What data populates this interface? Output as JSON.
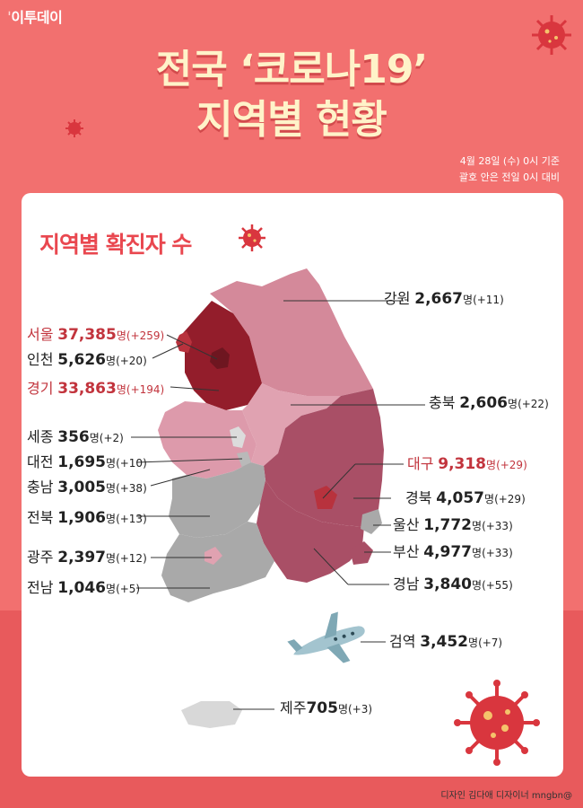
{
  "brand": "이투데이",
  "title": {
    "line1": "전국 ‘코로나19’",
    "line2": "지역별 현황"
  },
  "meta": {
    "date_basis": "4월 28일 (수) 0시 기준",
    "note": "괄호 안은 전일 0시 대비"
  },
  "section_title": "지역별 확진자 수",
  "unit": "명",
  "regions": [
    {
      "name": "강원",
      "count": "2,667",
      "change": "(+11)",
      "highlight": false
    },
    {
      "name": "서울",
      "count": "37,385",
      "change": "(+259)",
      "highlight": true
    },
    {
      "name": "인천",
      "count": "5,626",
      "change": "(+20)",
      "highlight": false
    },
    {
      "name": "경기",
      "count": "33,863",
      "change": "(+194)",
      "highlight": true
    },
    {
      "name": "충북",
      "count": "2,606",
      "change": "(+22)",
      "highlight": false
    },
    {
      "name": "세종",
      "count": "356",
      "change": "(+2)",
      "highlight": false
    },
    {
      "name": "대전",
      "count": "1,695",
      "change": "(+10)",
      "highlight": false
    },
    {
      "name": "대구",
      "count": "9,318",
      "change": "(+29)",
      "highlight": true
    },
    {
      "name": "충남",
      "count": "3,005",
      "change": "(+38)",
      "highlight": false
    },
    {
      "name": "경북",
      "count": "4,057",
      "change": "(+29)",
      "highlight": false
    },
    {
      "name": "전북",
      "count": "1,906",
      "change": "(+13)",
      "highlight": false
    },
    {
      "name": "울산",
      "count": "1,772",
      "change": "(+33)",
      "highlight": false
    },
    {
      "name": "부산",
      "count": "4,977",
      "change": "(+33)",
      "highlight": false
    },
    {
      "name": "광주",
      "count": "2,397",
      "change": "(+12)",
      "highlight": false
    },
    {
      "name": "경남",
      "count": "3,840",
      "change": "(+55)",
      "highlight": false
    },
    {
      "name": "전남",
      "count": "1,046",
      "change": "(+5)",
      "highlight": false
    },
    {
      "name": "검역",
      "count": "3,452",
      "change": "(+7)",
      "highlight": false
    },
    {
      "name": "제주",
      "count": "705",
      "change": "(+3)",
      "highlight": false
    }
  ],
  "footer": "디자인 김다애 디자이너 mngbn@",
  "colors": {
    "background": "#f2706f",
    "title": "#fff3c9",
    "highlight_text": "#c2343d",
    "seoul": "#6e1620",
    "gyeonggi": "#931d2b",
    "incheon_daegu": "#b8323d",
    "gangwon": "#d4899a",
    "chungcheong": "#dd9aab",
    "yeongnam": "#a94f66",
    "honam_gray": "#a9a9a9",
    "virus": "#d9363e"
  },
  "icons": [
    "virus-icon",
    "airplane-icon"
  ]
}
